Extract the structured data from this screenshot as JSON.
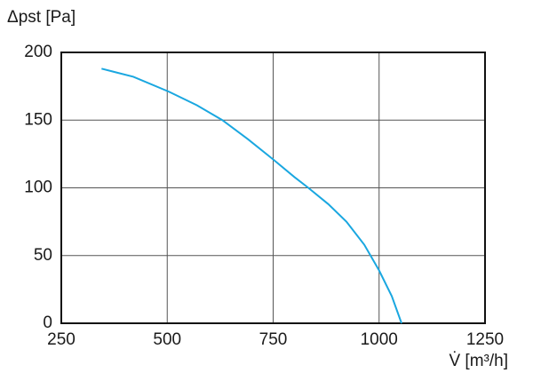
{
  "chart_data": {
    "type": "line",
    "y_label": "Δpst [Pa]",
    "x_label": "V̇ [m³/h]",
    "xlim": [
      250,
      1250
    ],
    "xticks": [
      250,
      500,
      750,
      1000,
      1250
    ],
    "ylim": [
      0,
      200
    ],
    "yticks": [
      0,
      50,
      100,
      150,
      200
    ],
    "grid": true,
    "series": [
      {
        "color": "#1aa7e0",
        "x": [
          345,
          420,
          504,
          570,
          630,
          690,
          750,
          800,
          833,
          880,
          923,
          965,
          1000,
          1030,
          1053
        ],
        "values": [
          188,
          182,
          171,
          161,
          150,
          136,
          121,
          108,
          100,
          88,
          75,
          58,
          39,
          20,
          0
        ]
      }
    ]
  }
}
